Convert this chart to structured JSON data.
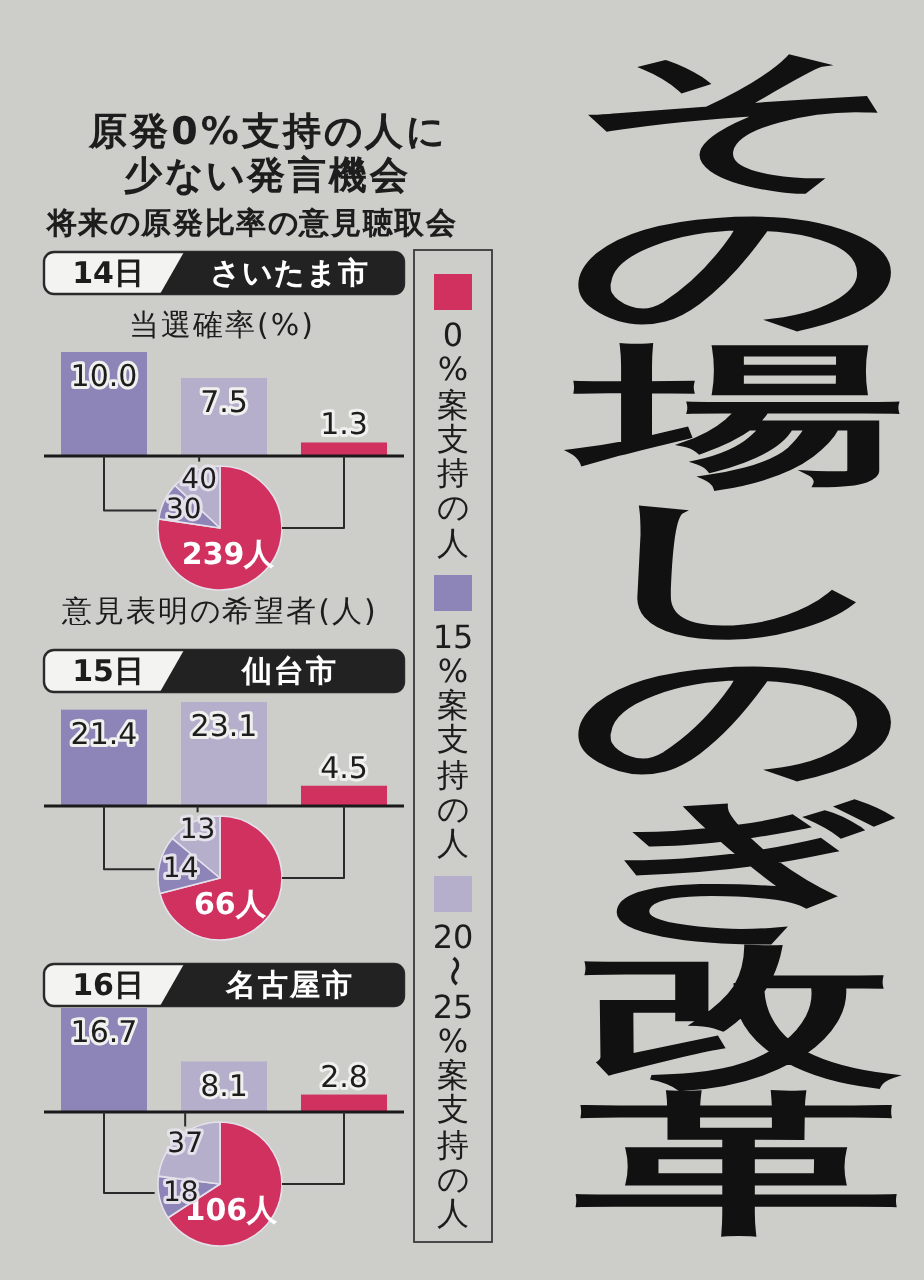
{
  "chart_data": [
    {
      "type": "other",
      "title": "原発0%支持の人に少ない発言機会",
      "subtitle": "将来の原発比率の意見聴取会",
      "annotations": [
        "その場しのぎ改革"
      ]
    },
    {
      "type": "bar",
      "title": "14日",
      "subtitle": "さいたま市",
      "ylabel": "当選確率(%)",
      "categories": [
        null,
        null,
        null
      ],
      "values": [
        10.0,
        7.5,
        1.3
      ],
      "value_labels": [
        "10.0",
        "7.5",
        "1.3"
      ],
      "colors": [
        "#8d84b7",
        "#b6afcc",
        "#d0315f"
      ]
    },
    {
      "type": "pie",
      "title": "意見表明の希望者(人)",
      "categories": [
        "0%案支持の人",
        "15%案支持の人",
        "20〜25%案支持の人"
      ],
      "values": [
        239,
        30,
        40
      ],
      "value_labels": [
        "239人",
        "30",
        "40"
      ],
      "colors": [
        "#d0315f",
        "#8d84b7",
        "#b6afcc"
      ],
      "legend": "right"
    },
    {
      "type": "bar",
      "title": "15日",
      "subtitle": "仙台市",
      "categories": [
        null,
        null,
        null
      ],
      "values": [
        21.4,
        23.1,
        4.5
      ],
      "value_labels": [
        "21.4",
        "23.1",
        "4.5"
      ],
      "colors": [
        "#8d84b7",
        "#b6afcc",
        "#d0315f"
      ]
    },
    {
      "type": "pie",
      "categories": [
        null,
        null,
        null
      ],
      "values": [
        66,
        14,
        13
      ],
      "value_labels": [
        "66人",
        "14",
        "13"
      ],
      "colors": [
        "#d0315f",
        "#8d84b7",
        "#b6afcc"
      ]
    },
    {
      "type": "bar",
      "title": "16日",
      "subtitle": "名古屋市",
      "categories": [
        null,
        null,
        null
      ],
      "values": [
        16.7,
        8.1,
        2.8
      ],
      "value_labels": [
        "16.7",
        "8.1",
        "2.8"
      ],
      "colors": [
        "#8d84b7",
        "#b6afcc",
        "#d0315f"
      ]
    },
    {
      "type": "pie",
      "categories": [
        null,
        null,
        null
      ],
      "values": [
        106,
        18,
        37
      ],
      "value_labels": [
        "106人",
        "18",
        "37"
      ],
      "colors": [
        "#d0315f",
        "#8d84b7",
        "#b6afcc"
      ]
    }
  ]
}
